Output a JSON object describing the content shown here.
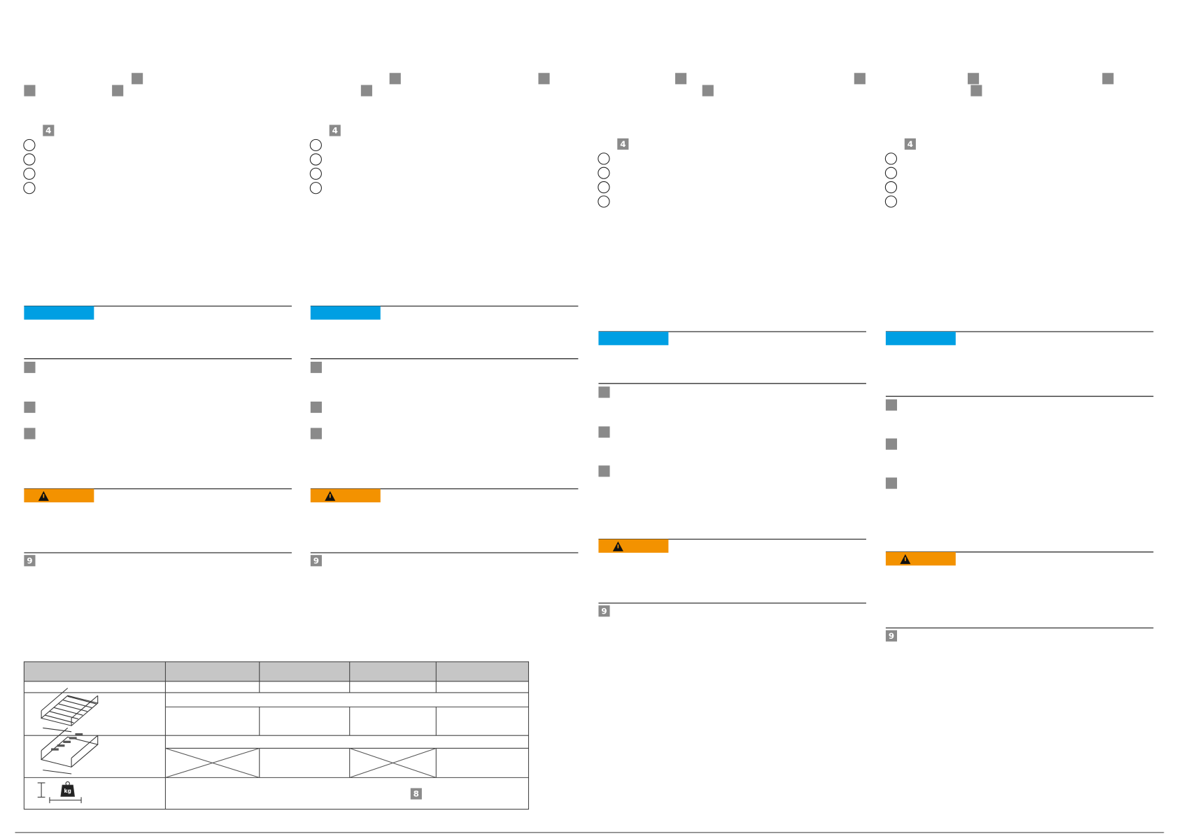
{
  "columns": [
    {
      "figure_label": "4",
      "section_label": "9"
    },
    {
      "figure_label": "4",
      "section_label": "9"
    },
    {
      "figure_label": "4",
      "section_label": "9"
    },
    {
      "figure_label": "4",
      "section_label": "9"
    }
  ],
  "table": {
    "load_label": "8",
    "weight_icon": "kg"
  }
}
